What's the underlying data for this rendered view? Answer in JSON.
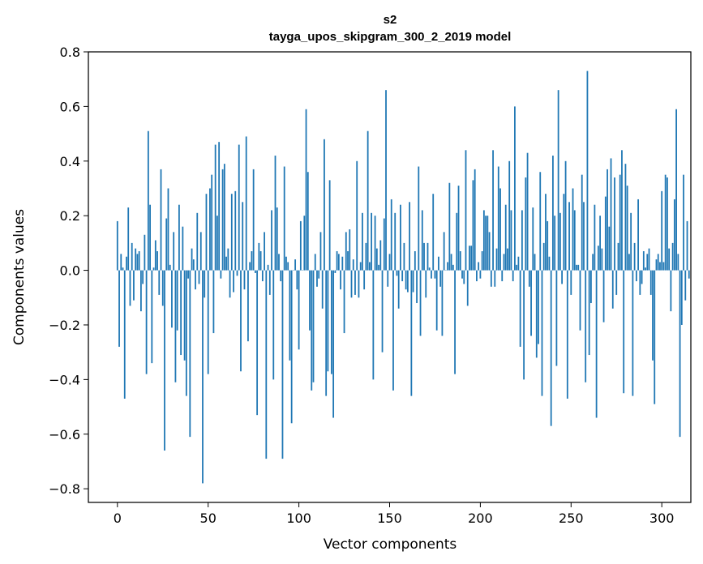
{
  "chart_data": {
    "type": "bar",
    "title": "s2",
    "subtitle": "tayga_upos_skipgram_300_2_2019 model",
    "xlabel": "Vector components",
    "ylabel": "Components values",
    "xlim": [
      -16,
      316
    ],
    "ylim": [
      -0.85,
      0.8
    ],
    "xticks": [
      0,
      50,
      100,
      150,
      200,
      250,
      300
    ],
    "xtick_labels": [
      "0",
      "50",
      "100",
      "150",
      "200",
      "250",
      "300"
    ],
    "yticks": [
      -0.8,
      -0.6,
      -0.4,
      -0.2,
      0.0,
      0.2,
      0.4,
      0.6,
      0.8
    ],
    "ytick_labels": [
      "−0.8",
      "−0.6",
      "−0.4",
      "−0.2",
      "0.0",
      "0.2",
      "0.4",
      "0.6",
      "0.8"
    ],
    "grid": false,
    "bar_color": "#1f77b4",
    "values": [
      0.18,
      -0.28,
      0.06,
      0.01,
      -0.47,
      0.05,
      0.23,
      -0.13,
      0.1,
      -0.11,
      0.08,
      0.06,
      0.07,
      -0.15,
      -0.05,
      0.13,
      -0.38,
      0.51,
      0.24,
      -0.34,
      0.01,
      0.11,
      0.07,
      -0.09,
      0.37,
      -0.13,
      -0.66,
      0.19,
      0.3,
      0.02,
      -0.21,
      0.14,
      -0.41,
      -0.22,
      0.24,
      -0.31,
      0.16,
      -0.33,
      -0.46,
      -0.03,
      -0.61,
      0.08,
      0.04,
      -0.07,
      0.21,
      -0.05,
      0.14,
      -0.78,
      -0.1,
      0.28,
      -0.38,
      0.3,
      0.35,
      -0.23,
      0.46,
      0.2,
      0.47,
      -0.03,
      0.37,
      0.39,
      0.05,
      0.08,
      -0.1,
      0.28,
      -0.08,
      0.29,
      -0.02,
      0.46,
      -0.37,
      0.25,
      -0.07,
      0.49,
      -0.26,
      0.03,
      0.07,
      0.37,
      -0.01,
      -0.53,
      0.1,
      0.07,
      -0.04,
      0.14,
      -0.69,
      0.02,
      -0.09,
      0.22,
      -0.4,
      0.42,
      0.23,
      0.06,
      -0.04,
      -0.69,
      0.38,
      0.05,
      0.03,
      -0.33,
      -0.56,
      0.0,
      0.04,
      -0.07,
      -0.29,
      0.18,
      0.0,
      0.2,
      0.59,
      0.36,
      -0.22,
      -0.44,
      -0.41,
      0.06,
      -0.06,
      -0.03,
      0.14,
      -0.14,
      0.48,
      -0.46,
      -0.37,
      0.33,
      -0.38,
      -0.54,
      -0.01,
      0.07,
      0.06,
      -0.07,
      0.05,
      -0.23,
      0.14,
      0.07,
      0.15,
      -0.1,
      0.04,
      -0.09,
      0.4,
      -0.1,
      0.03,
      0.21,
      -0.07,
      0.1,
      0.51,
      0.03,
      0.21,
      -0.4,
      0.2,
      0.08,
      0.02,
      0.11,
      -0.3,
      0.19,
      0.66,
      -0.06,
      0.06,
      0.26,
      -0.44,
      0.21,
      -0.02,
      -0.14,
      0.24,
      -0.04,
      0.1,
      -0.07,
      -0.08,
      0.25,
      -0.46,
      -0.08,
      0.07,
      -0.12,
      0.38,
      -0.24,
      0.22,
      0.1,
      -0.1,
      0.1,
      0.01,
      -0.03,
      0.28,
      -0.03,
      -0.22,
      0.05,
      -0.06,
      -0.24,
      0.14,
      0.0,
      0.03,
      0.32,
      0.06,
      0.02,
      -0.38,
      0.21,
      0.31,
      0.07,
      -0.03,
      -0.05,
      0.44,
      -0.13,
      0.09,
      0.09,
      0.33,
      0.37,
      -0.04,
      0.03,
      -0.03,
      0.07,
      0.22,
      0.2,
      0.2,
      0.14,
      -0.06,
      0.44,
      -0.06,
      0.08,
      0.38,
      0.3,
      -0.04,
      0.06,
      0.24,
      0.08,
      0.4,
      0.22,
      -0.04,
      0.6,
      0.02,
      0.05,
      -0.28,
      0.22,
      -0.4,
      0.34,
      0.43,
      -0.06,
      -0.24,
      0.23,
      0.06,
      -0.32,
      -0.27,
      0.36,
      -0.46,
      0.1,
      0.28,
      0.18,
      0.05,
      -0.57,
      0.42,
      0.2,
      -0.35,
      0.66,
      0.21,
      -0.05,
      0.28,
      0.4,
      -0.47,
      0.25,
      -0.09,
      0.3,
      0.22,
      0.02,
      0.02,
      -0.22,
      0.35,
      0.25,
      -0.41,
      0.73,
      -0.31,
      -0.12,
      0.06,
      0.24,
      -0.54,
      0.09,
      0.2,
      0.08,
      -0.19,
      0.27,
      0.37,
      0.16,
      0.41,
      -0.14,
      0.34,
      -0.09,
      0.1,
      0.35,
      0.44,
      -0.45,
      0.39,
      0.31,
      0.06,
      0.21,
      -0.46,
      0.1,
      -0.04,
      0.26,
      -0.09,
      -0.05,
      0.07,
      0.01,
      0.06,
      0.08,
      -0.09,
      -0.33,
      -0.49,
      0.04,
      0.06,
      0.03,
      0.29,
      0.03,
      0.35,
      0.34,
      0.08,
      -0.15,
      0.1,
      0.26,
      0.59,
      0.06,
      -0.61,
      -0.2,
      0.35,
      -0.11,
      0.18,
      -0.03
    ]
  }
}
